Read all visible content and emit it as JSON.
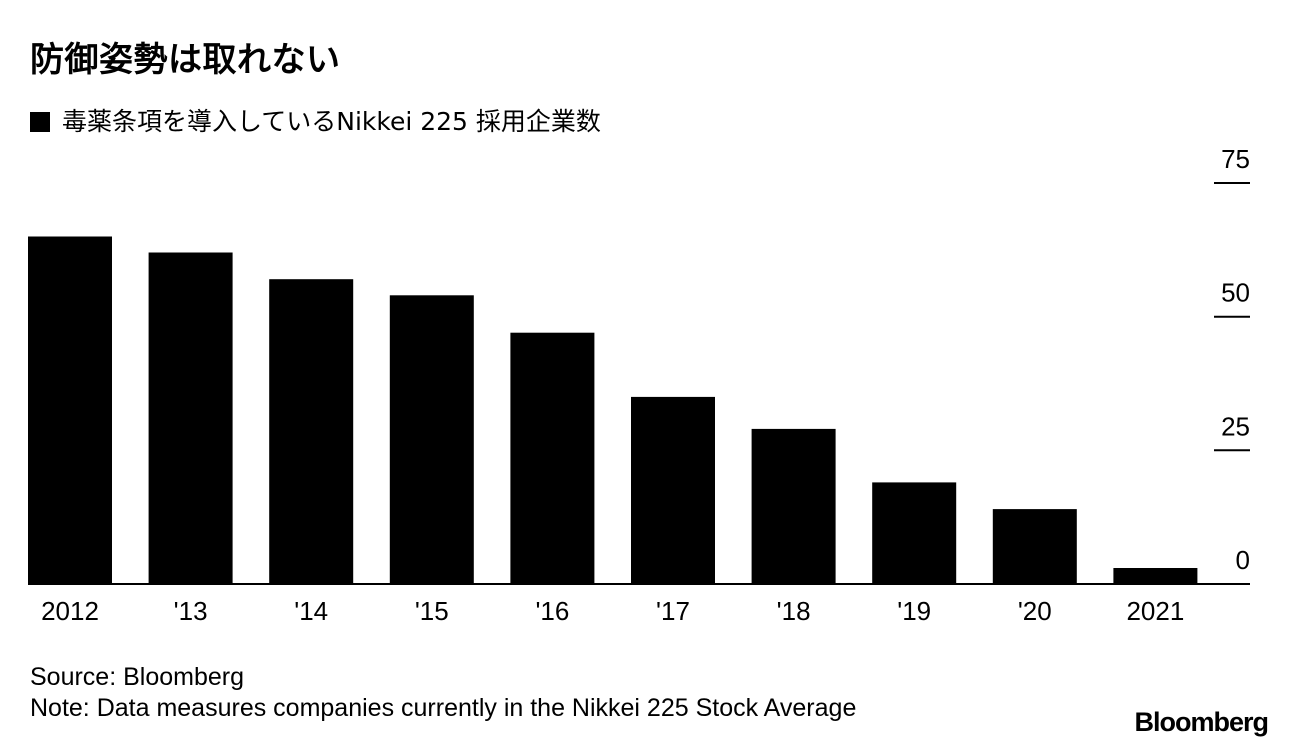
{
  "title": "防御姿勢は取れない",
  "legend": {
    "label": "毒薬条項を導入しているNikkei 225 採用企業数",
    "color": "#000000"
  },
  "chart_data": {
    "type": "bar",
    "categories": [
      "2012",
      "'13",
      "'14",
      "'15",
      "'16",
      "'17",
      "'18",
      "'19",
      "'20",
      "2021"
    ],
    "series": [
      {
        "name": "毒薬条項を導入しているNikkei 225 採用企業数",
        "values": [
          65,
          62,
          57,
          54,
          47,
          35,
          29,
          19,
          14,
          3
        ]
      }
    ],
    "yticks": [
      "0",
      "25",
      "50",
      "75"
    ],
    "ylim": [
      0,
      75
    ],
    "y_axis_position": "right",
    "grid": false,
    "bar_color": "#000000"
  },
  "footer": {
    "source": "Source: Bloomberg",
    "note": "Note: Data measures companies currently in the Nikkei 225 Stock Average"
  },
  "brand": "Bloomberg"
}
